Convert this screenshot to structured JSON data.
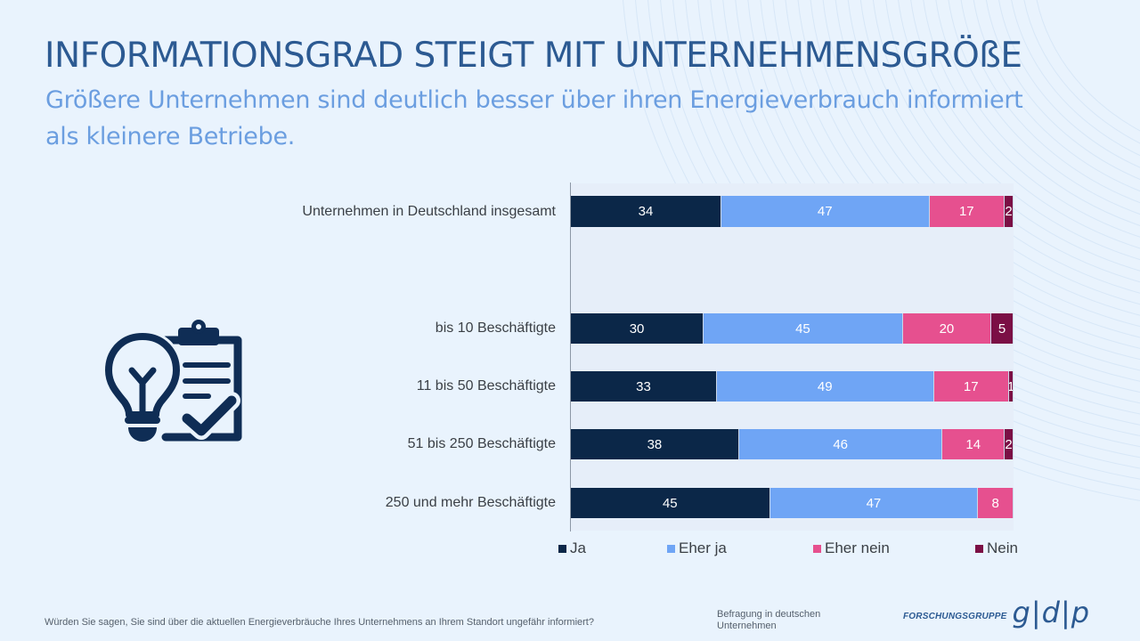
{
  "header": {
    "title": "INFORMATIONSGRAD STEIGT MIT UNTERNEHMENSGRÖßE",
    "subtitle": "Größere Unternehmen sind deutlich besser über ihren Energieverbrauch informiert als kleinere Betriebe."
  },
  "illustration": {
    "icon": "lightbulb-clipboard-check-icon"
  },
  "colors": {
    "Ja": "#0b2748",
    "Eher ja": "#6fa5f5",
    "Eher nein": "#e6508f",
    "Nein": "#7b0f45"
  },
  "chart_data": {
    "type": "bar",
    "orientation": "horizontal-stacked",
    "title": "",
    "xlabel": "",
    "ylabel": "",
    "xlim": [
      0,
      100
    ],
    "unit": "%",
    "grid": false,
    "legend_position": "bottom",
    "categories": [
      "Unternehmen in Deutschland insgesamt",
      "bis 10 Beschäftigte",
      "11 bis 50 Beschäftigte",
      "51 bis 250 Beschäftigte",
      "250 und mehr Beschäftigte"
    ],
    "series": [
      {
        "name": "Ja",
        "values": [
          34,
          30,
          33,
          38,
          45
        ]
      },
      {
        "name": "Eher ja",
        "values": [
          47,
          45,
          49,
          46,
          47
        ]
      },
      {
        "name": "Eher nein",
        "values": [
          17,
          20,
          17,
          14,
          8
        ]
      },
      {
        "name": "Nein",
        "values": [
          2,
          5,
          1,
          2,
          null
        ]
      }
    ]
  },
  "footer": {
    "question": "Würden Sie sagen, Sie sind über die aktuellen Energieverbräuche Ihres Unternehmens an Ihrem Standort ungefähr informiert?",
    "source": "Befragung in deutschen Unternehmen",
    "logo_text": "FORSCHUNGSGRUPPE",
    "logo_mark": "g|d|p"
  }
}
